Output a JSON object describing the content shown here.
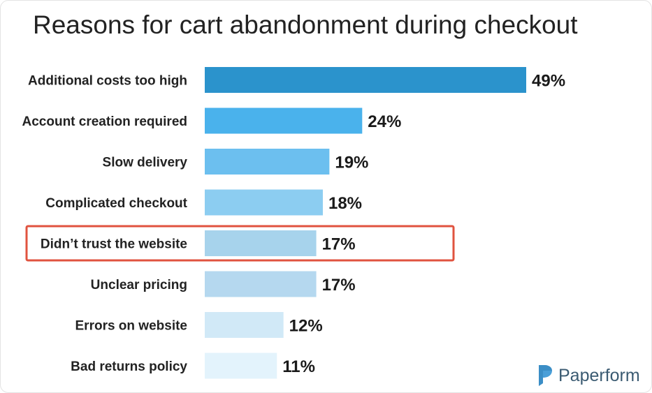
{
  "chart_data": {
    "type": "bar",
    "orientation": "horizontal",
    "title": "Reasons for cart abandonment during checkout",
    "categories": [
      "Additional costs too high",
      "Account creation required",
      "Slow delivery",
      "Complicated checkout",
      "Didn’t trust the website",
      "Unclear pricing",
      "Errors on website",
      "Bad returns policy"
    ],
    "values": [
      49,
      24,
      19,
      18,
      17,
      17,
      12,
      11
    ],
    "value_labels": [
      "49%",
      "24%",
      "19%",
      "18%",
      "17%",
      "17%",
      "12%",
      "11%"
    ],
    "unit": "%",
    "xlim": [
      0,
      49
    ],
    "bar_colors": [
      "#2b93cc",
      "#4ab2ec",
      "#6cbfef",
      "#8ccdf1",
      "#a7d3ec",
      "#b5d8ef",
      "#d1e9f7",
      "#e3f3fc"
    ],
    "highlight_index": 4,
    "highlight_color": "#e0533f",
    "grid": false,
    "legend": "none"
  },
  "branding": {
    "logo_text": "Paperform",
    "logo_icon": "paperform-logo-icon",
    "logo_color": "#3b5b72",
    "icon_color": "#4a9fd8"
  }
}
